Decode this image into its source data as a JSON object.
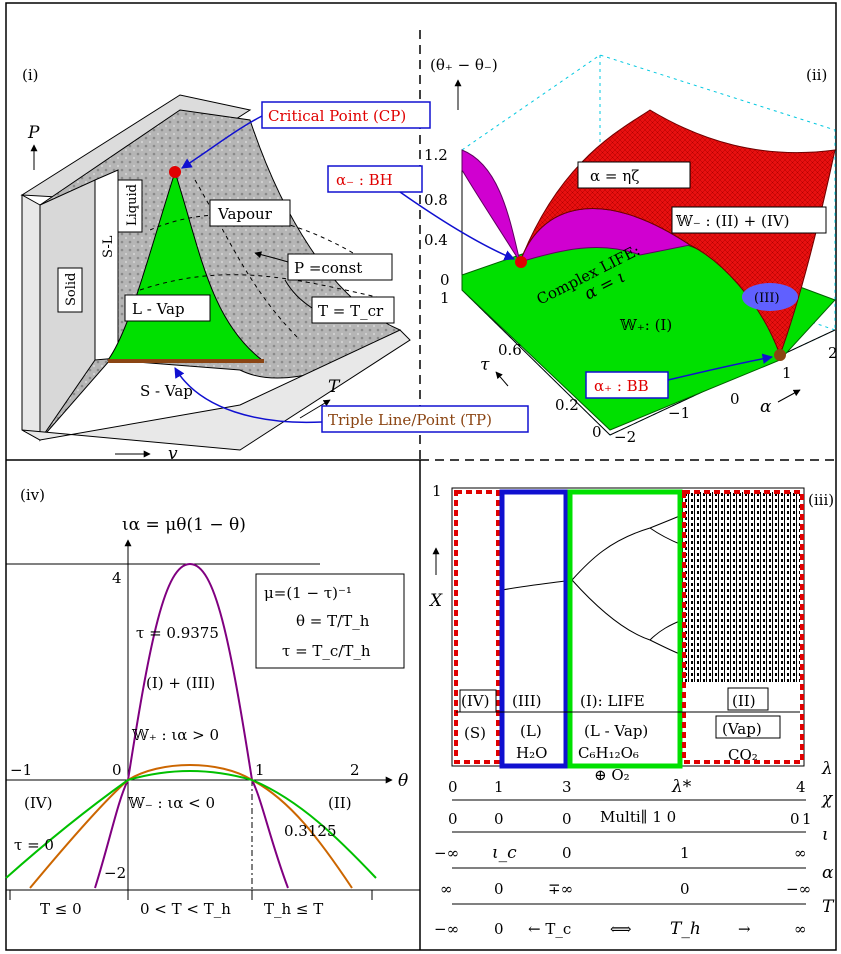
{
  "panels": {
    "i": {
      "label": "(i)",
      "axis_p": "P",
      "axis_v": "v",
      "axis_t": "T",
      "regions": {
        "solid": "Solid",
        "sl": "S-L",
        "liquid": "Liquid",
        "vapour": "Vapour",
        "lvap": "L - Vap",
        "svap": "S - Vap"
      },
      "callouts": {
        "critical_point": "Critical Point (CP)",
        "p_const": "P =const",
        "t_tcr": "T = T_cr",
        "triple": "Triple Line/Point (TP)"
      }
    },
    "ii": {
      "label": "(ii)",
      "zlabel": "(θ₊ − θ₋)",
      "z_ticks": [
        "1.2",
        "0.8",
        "0.4",
        "0"
      ],
      "tau_ticks": [
        "1",
        "0.6",
        "0.2",
        "0"
      ],
      "alpha_ticks": [
        "−2",
        "−1",
        "0",
        "1",
        "2"
      ],
      "tau_label": "τ",
      "alpha_label": "α",
      "annotations": {
        "alpha_minus": "α₋ : BH",
        "alpha_eq": "α = ηζ",
        "w_minus": "𝕎₋ : (II) + (IV)",
        "complex_life": "Complex LIFE:",
        "alpha_iota": "α = ι",
        "w_plus": "𝕎₊: (I)",
        "iii": "(III)",
        "alpha_plus": "α₊ : BB"
      }
    },
    "iii": {
      "label": "(iii)",
      "y_top": "1",
      "y_label": "X",
      "regions": [
        {
          "top": "(IV)",
          "bottom": "(S)"
        },
        {
          "top": "(III)",
          "mid": "(L)",
          "bottom": "H₂O"
        },
        {
          "top": "(I): LIFE",
          "mid": "(L - Vap)",
          "formula": "C₆H₁₂O₆",
          "bottom": "⊕ O₂"
        },
        {
          "top": "(II)",
          "mid": "(Vap)",
          "bottom": "CO₂"
        }
      ],
      "scales": [
        {
          "name": "λ",
          "ticks": [
            "0",
            "1",
            "3",
            "λ*",
            "4"
          ]
        },
        {
          "name": "χ",
          "ticks": [
            "0",
            "0",
            "0",
            "Multi∥ 1 0",
            "0",
            "1"
          ]
        },
        {
          "name": "ι",
          "ticks": [
            "−∞",
            "ι_c",
            "0",
            "1",
            "∞"
          ]
        },
        {
          "name": "α",
          "ticks": [
            "∞",
            "0",
            "∓∞",
            "0",
            "−∞"
          ]
        },
        {
          "name": "T",
          "ticks": [
            "−∞",
            "0",
            "← T_c",
            "⟺",
            "T_h",
            "→",
            "∞"
          ]
        }
      ]
    },
    "iv": {
      "label": "(iv)",
      "ylabel": "ια = μθ(1 − θ)",
      "xlabel": "θ",
      "y_ticks": [
        "4",
        "−2"
      ],
      "x_ticks": [
        "−1",
        "0",
        "1",
        "2"
      ],
      "legend_lines": [
        "μ=(1 − τ)⁻¹",
        "θ = T/T_h",
        "τ = T_c/T_h"
      ],
      "annotations": {
        "tau_high": "τ = 0.9375",
        "i_iii": "(I) + (III)",
        "w_plus": "𝕎₊ : ια > 0",
        "w_minus": "𝕎₋ : ια < 0",
        "iv": "(IV)",
        "ii": "(II)",
        "tau_zero": "τ = 0",
        "tau_mid": "0.3125"
      },
      "bottom": [
        "T ≤ 0",
        "0 < T < T_h",
        "T_h ≤ T"
      ]
    }
  },
  "colors": {
    "green": "#00e000",
    "red": "#e00000",
    "blue": "#1010d0",
    "brown": "#8b4513",
    "magenta": "#d000d0",
    "purple": "#800080",
    "orange": "#cc6600"
  }
}
